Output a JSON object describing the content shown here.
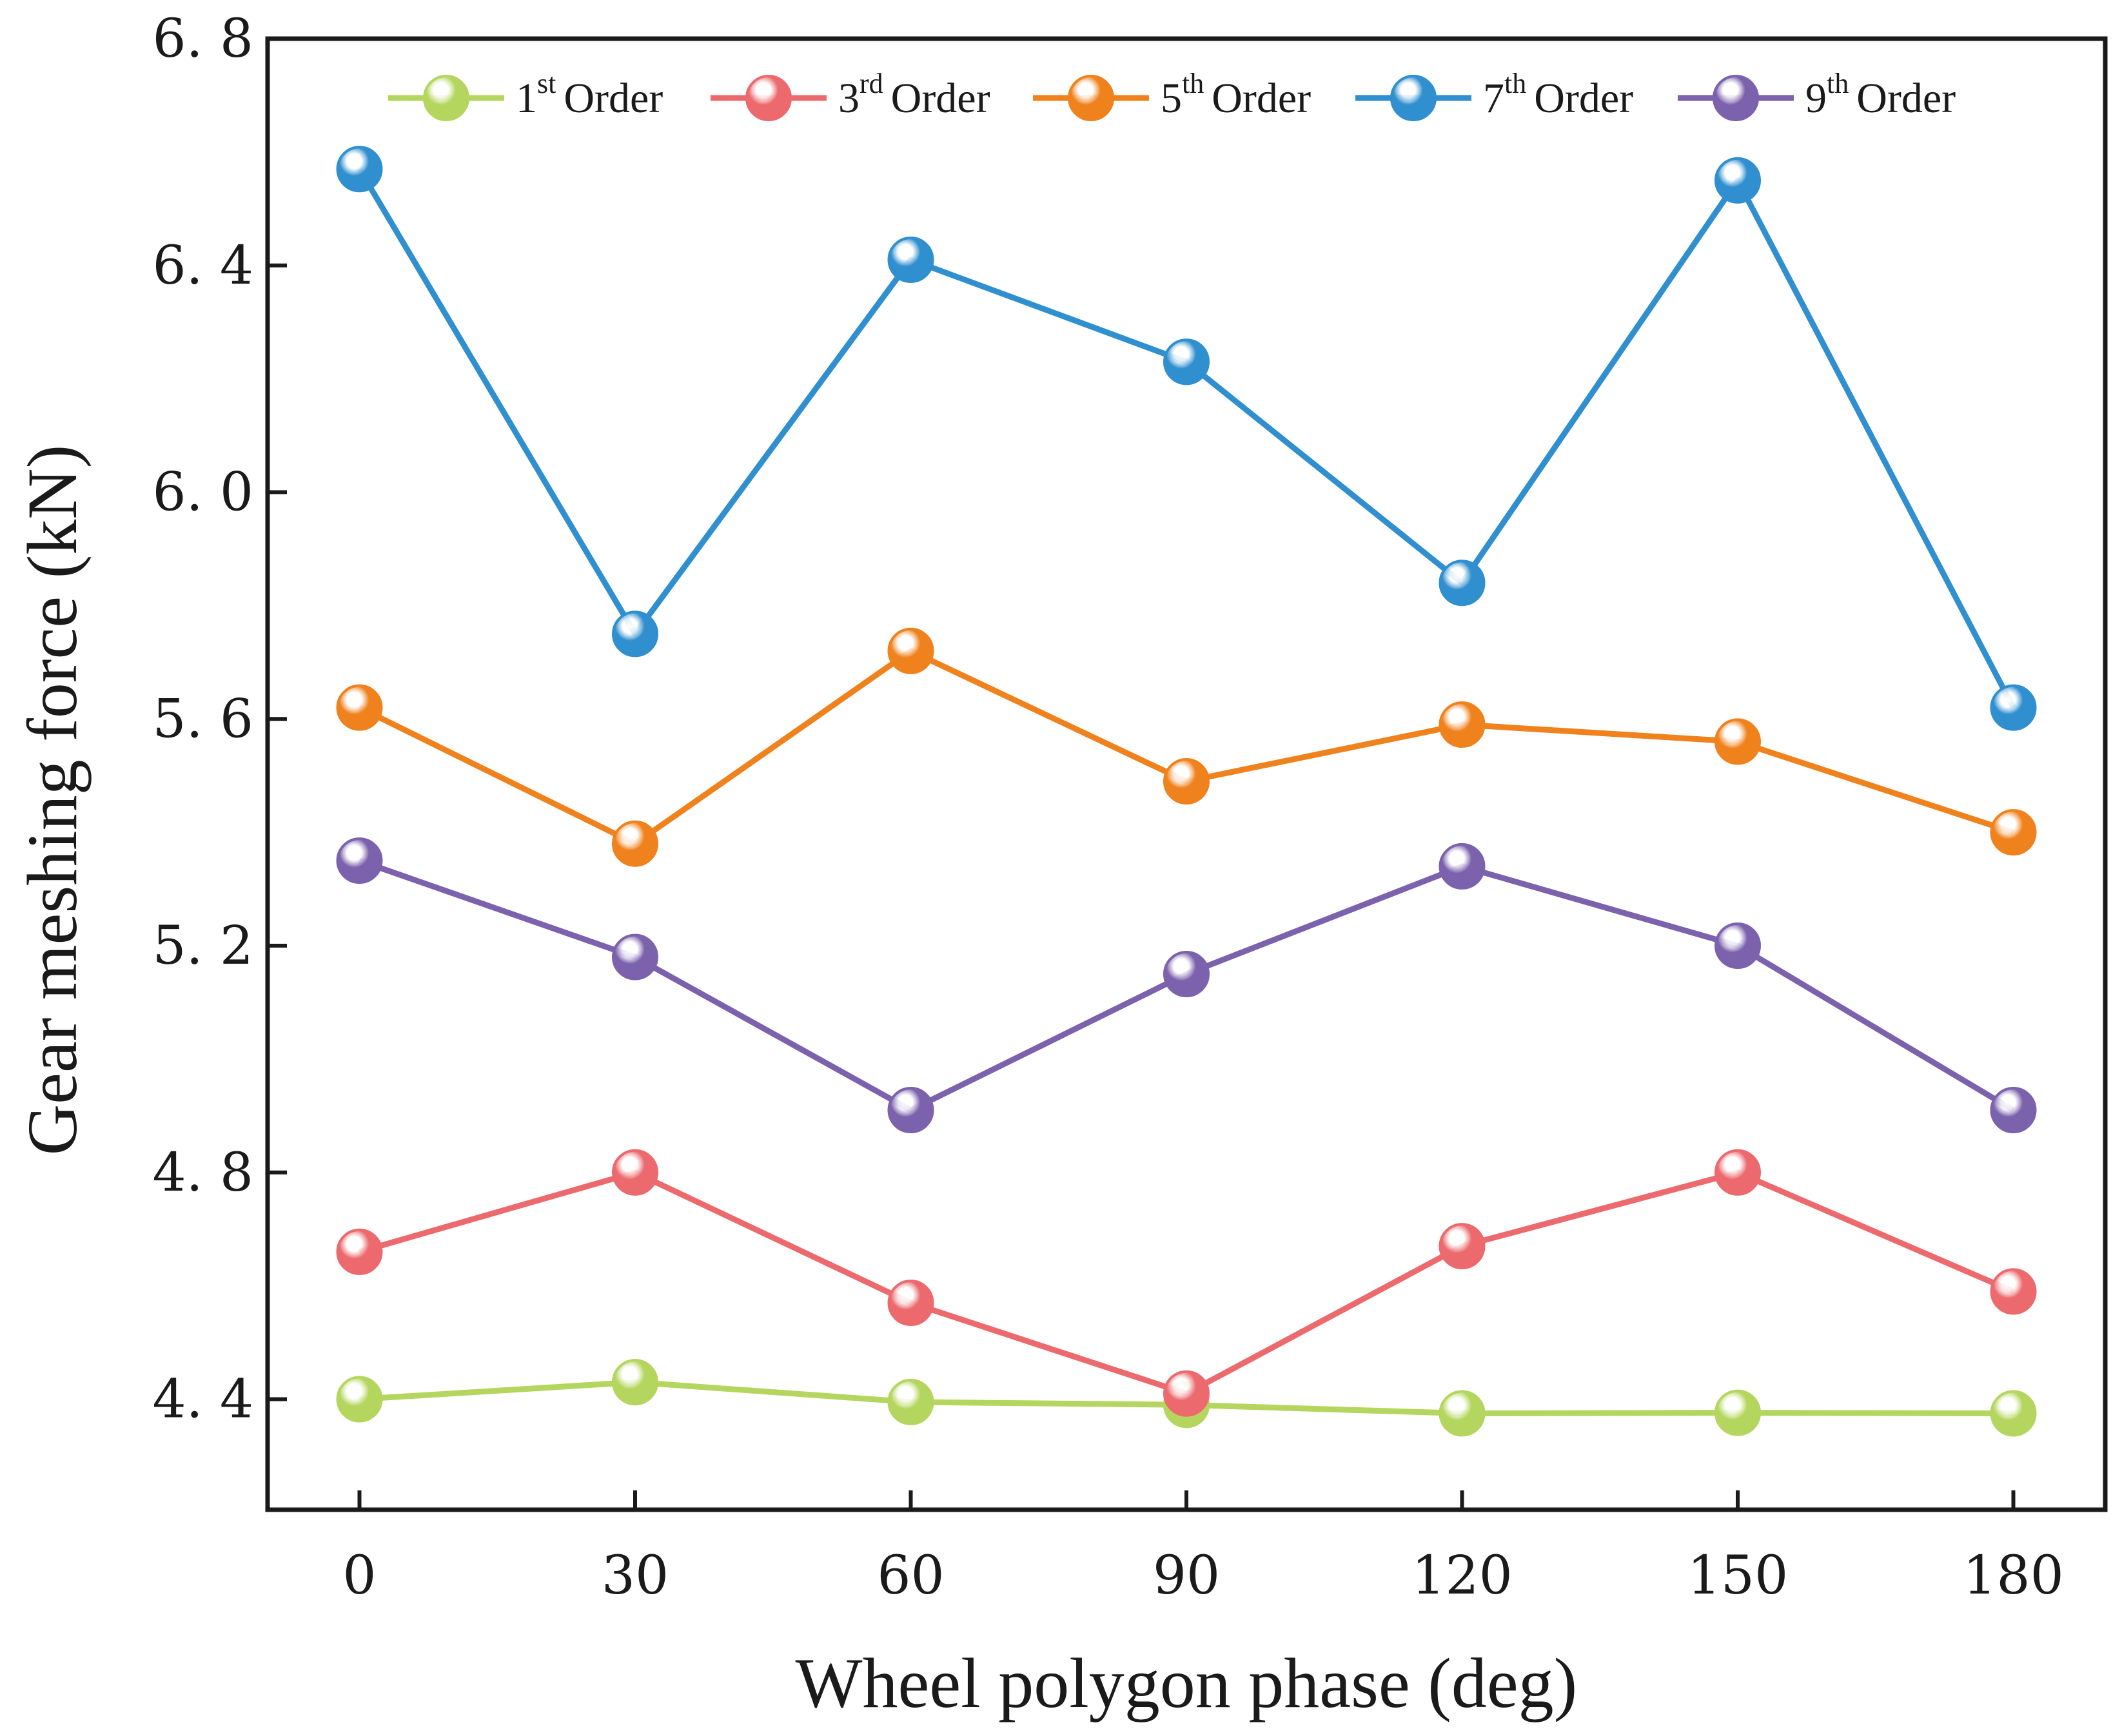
{
  "chart_data": {
    "type": "line",
    "title": "",
    "xlabel": "Wheel polygon phase (deg)",
    "ylabel": "Gear meshing force (kN)",
    "x": [
      0,
      30,
      60,
      90,
      120,
      150,
      180
    ],
    "x_tick_labels": [
      "0",
      "30",
      "60",
      "90",
      "120",
      "150",
      "180"
    ],
    "y_ticks": [
      4.4,
      4.8,
      5.2,
      5.6,
      6.0,
      6.4,
      6.8
    ],
    "y_tick_labels": [
      "4. 4",
      "4. 8",
      "5. 2",
      "5. 6",
      "6. 0",
      "6. 4",
      "6. 8"
    ],
    "xlim": [
      -10,
      190
    ],
    "ylim": [
      4.205,
      6.8
    ],
    "grid": false,
    "legend_position": "top",
    "series": [
      {
        "name": "1st Order",
        "num": "1",
        "sup": "st",
        "word": "Order",
        "color": "#b5d65e",
        "values": [
          4.4,
          4.43,
          4.395,
          4.39,
          4.375,
          4.376,
          4.375
        ]
      },
      {
        "name": "3rd Order",
        "num": "3",
        "sup": "rd",
        "word": "Order",
        "color": "#ec6a6e",
        "values": [
          4.66,
          4.8,
          4.57,
          4.41,
          4.67,
          4.8,
          4.59
        ]
      },
      {
        "name": "5th Order",
        "num": "5",
        "sup": "th",
        "word": "Order",
        "color": "#f0821e",
        "values": [
          5.62,
          5.38,
          5.72,
          5.49,
          5.59,
          5.56,
          5.4
        ]
      },
      {
        "name": "7th Order",
        "num": "7",
        "sup": "th",
        "word": "Order",
        "color": "#2f8fcf",
        "values": [
          6.57,
          5.75,
          6.41,
          6.23,
          5.84,
          6.55,
          5.62
        ]
      },
      {
        "name": "9th Order",
        "num": "9",
        "sup": "th",
        "word": "Order",
        "color": "#7c62ad",
        "values": [
          5.35,
          5.18,
          4.91,
          5.15,
          5.34,
          5.2,
          4.91
        ]
      }
    ]
  }
}
